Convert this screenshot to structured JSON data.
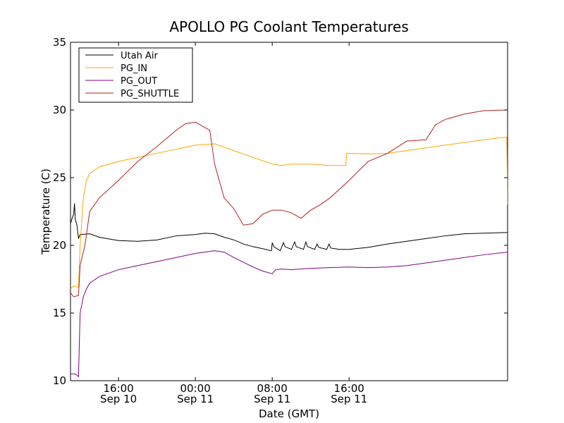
{
  "chart_data": {
    "type": "line",
    "title": "APOLLO PG Coolant Temperatures",
    "xlabel": "Date (GMT)",
    "ylabel": "Temperature (C)",
    "xlim": [
      "Sep 10 11:00",
      "Sep 12 08:30"
    ],
    "ylim": [
      10,
      35
    ],
    "grid": false,
    "legend_position": "top-left",
    "x_ticks": [
      {
        "time": "16:00",
        "date": "Sep 10",
        "at": "Sep 10 16:00"
      },
      {
        "time": "00:00",
        "date": "Sep 11",
        "at": "Sep 11 00:00"
      },
      {
        "time": "08:00",
        "date": "Sep 11",
        "at": "Sep 11 08:00"
      },
      {
        "time": "16:00",
        "date": "Sep 11",
        "at": "Sep 11 16:00"
      }
    ],
    "y_ticks": [
      10,
      15,
      20,
      25,
      30,
      35
    ],
    "series": [
      {
        "name": "Utah Air",
        "color": "#000000",
        "points": [
          [
            "Sep 10 11:00",
            21.6
          ],
          [
            "Sep 10 11:10",
            22.0
          ],
          [
            "Sep 10 11:20",
            22.3
          ],
          [
            "Sep 10 11:25",
            23.1
          ],
          [
            "Sep 10 11:30",
            21.9
          ],
          [
            "Sep 10 11:40",
            21.5
          ],
          [
            "Sep 10 11:50",
            20.5
          ],
          [
            "Sep 10 12:00",
            20.8
          ],
          [
            "Sep 10 13:00",
            20.85
          ],
          [
            "Sep 10 14:00",
            20.6
          ],
          [
            "Sep 10 16:00",
            20.35
          ],
          [
            "Sep 10 18:00",
            20.3
          ],
          [
            "Sep 10 20:00",
            20.4
          ],
          [
            "Sep 10 22:00",
            20.7
          ],
          [
            "Sep 11 00:00",
            20.8
          ],
          [
            "Sep 11 01:00",
            20.9
          ],
          [
            "Sep 11 02:00",
            20.85
          ],
          [
            "Sep 11 03:00",
            20.6
          ],
          [
            "Sep 11 04:00",
            20.4
          ],
          [
            "Sep 11 05:00",
            20.1
          ],
          [
            "Sep 11 06:00",
            19.9
          ],
          [
            "Sep 11 07:00",
            19.75
          ],
          [
            "Sep 11 07:55",
            19.6
          ],
          [
            "Sep 11 08:00",
            20.2
          ],
          [
            "Sep 11 08:10",
            19.9
          ],
          [
            "Sep 11 08:50",
            19.6
          ],
          [
            "Sep 11 09:10",
            20.2
          ],
          [
            "Sep 11 09:20",
            19.9
          ],
          [
            "Sep 11 10:00",
            19.7
          ],
          [
            "Sep 11 10:20",
            20.25
          ],
          [
            "Sep 11 10:30",
            19.9
          ],
          [
            "Sep 11 11:15",
            19.7
          ],
          [
            "Sep 11 11:30",
            20.25
          ],
          [
            "Sep 11 11:40",
            19.9
          ],
          [
            "Sep 11 12:25",
            19.7
          ],
          [
            "Sep 11 12:40",
            20.1
          ],
          [
            "Sep 11 12:50",
            19.85
          ],
          [
            "Sep 11 13:40",
            19.7
          ],
          [
            "Sep 11 13:55",
            20.1
          ],
          [
            "Sep 11 14:05",
            19.8
          ],
          [
            "Sep 11 15:00",
            19.7
          ],
          [
            "Sep 11 16:00",
            19.7
          ],
          [
            "Sep 11 18:00",
            19.85
          ],
          [
            "Sep 11 20:00",
            20.1
          ],
          [
            "Sep 11 22:00",
            20.3
          ],
          [
            "Sep 12 00:00",
            20.5
          ],
          [
            "Sep 12 02:00",
            20.7
          ],
          [
            "Sep 12 04:00",
            20.85
          ],
          [
            "Sep 12 06:00",
            20.9
          ],
          [
            "Sep 12 08:30",
            20.95
          ]
        ]
      },
      {
        "name": "PG_IN",
        "color": "#ffa500",
        "points": [
          [
            "Sep 10 11:00",
            16.8
          ],
          [
            "Sep 10 11:20",
            17.0
          ],
          [
            "Sep 10 11:50",
            16.9
          ],
          [
            "Sep 10 12:00",
            20.0
          ],
          [
            "Sep 10 12:20",
            23.5
          ],
          [
            "Sep 10 12:40",
            24.8
          ],
          [
            "Sep 10 13:00",
            25.3
          ],
          [
            "Sep 10 14:00",
            25.8
          ],
          [
            "Sep 10 16:00",
            26.2
          ],
          [
            "Sep 10 18:00",
            26.5
          ],
          [
            "Sep 10 20:00",
            26.8
          ],
          [
            "Sep 10 22:00",
            27.1
          ],
          [
            "Sep 11 00:00",
            27.4
          ],
          [
            "Sep 11 02:00",
            27.5
          ],
          [
            "Sep 11 04:00",
            27.0
          ],
          [
            "Sep 11 06:00",
            26.5
          ],
          [
            "Sep 11 08:00",
            26.0
          ],
          [
            "Sep 11 09:00",
            25.9
          ],
          [
            "Sep 11 10:00",
            26.0
          ],
          [
            "Sep 11 12:00",
            26.0
          ],
          [
            "Sep 11 14:00",
            25.9
          ],
          [
            "Sep 11 15:40",
            25.9
          ],
          [
            "Sep 11 15:45",
            26.8
          ],
          [
            "Sep 11 18:00",
            26.75
          ],
          [
            "Sep 11 20:00",
            26.8
          ],
          [
            "Sep 11 22:00",
            27.0
          ],
          [
            "Sep 12 00:00",
            27.2
          ],
          [
            "Sep 12 02:00",
            27.4
          ],
          [
            "Sep 12 04:00",
            27.6
          ],
          [
            "Sep 12 06:00",
            27.8
          ],
          [
            "Sep 12 08:25",
            28.0
          ],
          [
            "Sep 12 08:30",
            23.0
          ]
        ]
      },
      {
        "name": "PG_OUT",
        "color": "#800080",
        "points": [
          [
            "Sep 10 11:00",
            10.5
          ],
          [
            "Sep 10 11:30",
            10.5
          ],
          [
            "Sep 10 11:50",
            10.3
          ],
          [
            "Sep 10 12:00",
            15.0
          ],
          [
            "Sep 10 12:20",
            16.2
          ],
          [
            "Sep 10 12:40",
            16.8
          ],
          [
            "Sep 10 13:00",
            17.2
          ],
          [
            "Sep 10 14:00",
            17.7
          ],
          [
            "Sep 10 16:00",
            18.2
          ],
          [
            "Sep 10 18:00",
            18.5
          ],
          [
            "Sep 10 20:00",
            18.8
          ],
          [
            "Sep 10 22:00",
            19.1
          ],
          [
            "Sep 11 00:00",
            19.4
          ],
          [
            "Sep 11 02:00",
            19.6
          ],
          [
            "Sep 11 03:00",
            19.5
          ],
          [
            "Sep 11 04:00",
            19.1
          ],
          [
            "Sep 11 06:00",
            18.4
          ],
          [
            "Sep 11 07:00",
            18.1
          ],
          [
            "Sep 11 08:00",
            17.9
          ],
          [
            "Sep 11 08:20",
            18.2
          ],
          [
            "Sep 11 09:00",
            18.25
          ],
          [
            "Sep 11 10:00",
            18.2
          ],
          [
            "Sep 11 12:00",
            18.3
          ],
          [
            "Sep 11 14:00",
            18.35
          ],
          [
            "Sep 11 16:00",
            18.4
          ],
          [
            "Sep 11 18:00",
            18.35
          ],
          [
            "Sep 11 20:00",
            18.4
          ],
          [
            "Sep 11 22:00",
            18.5
          ],
          [
            "Sep 12 00:00",
            18.7
          ],
          [
            "Sep 12 02:00",
            18.9
          ],
          [
            "Sep 12 04:00",
            19.1
          ],
          [
            "Sep 12 06:00",
            19.3
          ],
          [
            "Sep 12 08:30",
            19.5
          ]
        ]
      },
      {
        "name": "PG_SHUTTLE",
        "color": "#b22222",
        "points": [
          [
            "Sep 10 11:00",
            16.5
          ],
          [
            "Sep 10 11:20",
            16.2
          ],
          [
            "Sep 10 11:50",
            16.3
          ],
          [
            "Sep 10 12:00",
            18.5
          ],
          [
            "Sep 10 12:30",
            20.0
          ],
          [
            "Sep 10 13:00",
            22.5
          ],
          [
            "Sep 10 14:00",
            23.5
          ],
          [
            "Sep 10 16:00",
            24.8
          ],
          [
            "Sep 10 18:00",
            26.2
          ],
          [
            "Sep 10 20:00",
            27.3
          ],
          [
            "Sep 10 22:00",
            28.5
          ],
          [
            "Sep 10 23:00",
            29.0
          ],
          [
            "Sep 11 00:00",
            29.1
          ],
          [
            "Sep 11 01:00",
            28.7
          ],
          [
            "Sep 11 01:30",
            28.5
          ],
          [
            "Sep 11 02:00",
            26.0
          ],
          [
            "Sep 11 03:00",
            23.5
          ],
          [
            "Sep 11 04:00",
            22.7
          ],
          [
            "Sep 11 05:00",
            21.5
          ],
          [
            "Sep 11 06:00",
            21.6
          ],
          [
            "Sep 11 07:00",
            22.3
          ],
          [
            "Sep 11 08:00",
            22.6
          ],
          [
            "Sep 11 09:00",
            22.6
          ],
          [
            "Sep 11 10:00",
            22.4
          ],
          [
            "Sep 11 11:00",
            22.0
          ],
          [
            "Sep 11 12:00",
            22.6
          ],
          [
            "Sep 11 13:00",
            23.0
          ],
          [
            "Sep 11 14:00",
            23.5
          ],
          [
            "Sep 11 16:00",
            24.8
          ],
          [
            "Sep 11 18:00",
            26.2
          ],
          [
            "Sep 11 20:00",
            26.8
          ],
          [
            "Sep 11 22:00",
            27.7
          ],
          [
            "Sep 12 00:00",
            27.8
          ],
          [
            "Sep 12 01:00",
            28.9
          ],
          [
            "Sep 12 02:00",
            29.3
          ],
          [
            "Sep 12 04:00",
            29.7
          ],
          [
            "Sep 12 06:00",
            29.95
          ],
          [
            "Sep 12 08:30",
            30.0
          ]
        ]
      }
    ]
  }
}
